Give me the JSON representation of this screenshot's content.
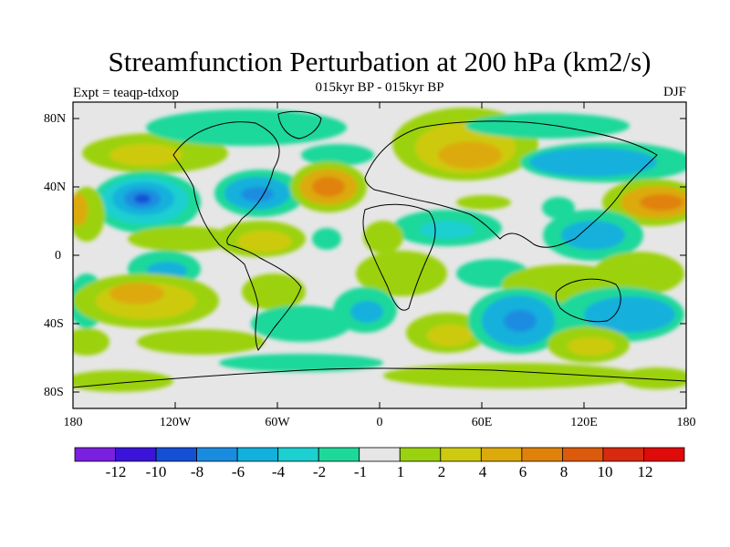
{
  "title": "Streamfunction Perturbation at 200 hPa (km2/s)",
  "subtitle_center": "015kyr BP - 015kyr BP",
  "subtitle_left": "Expt = teaqp-tdxop",
  "subtitle_right": "DJF",
  "lat_labels": [
    "80N",
    "40N",
    "0",
    "40S",
    "80S"
  ],
  "lon_labels": [
    "180",
    "120W",
    "60W",
    "0",
    "60E",
    "120E",
    "180"
  ],
  "colorbar": {
    "labels": [
      "-12",
      "-10",
      "-8",
      "-6",
      "-4",
      "-2",
      "-1",
      "1",
      "2",
      "4",
      "6",
      "8",
      "10",
      "12"
    ],
    "colors": [
      "#7b1fe0",
      "#3a14d8",
      "#1450d4",
      "#1a8ce0",
      "#12b0dc",
      "#1ccfd0",
      "#1ed89a",
      "#e6e6e6",
      "#9bd20f",
      "#cdca10",
      "#dcaa0a",
      "#e0820a",
      "#dc5a0c",
      "#d82a10",
      "#e00a0a"
    ]
  }
}
